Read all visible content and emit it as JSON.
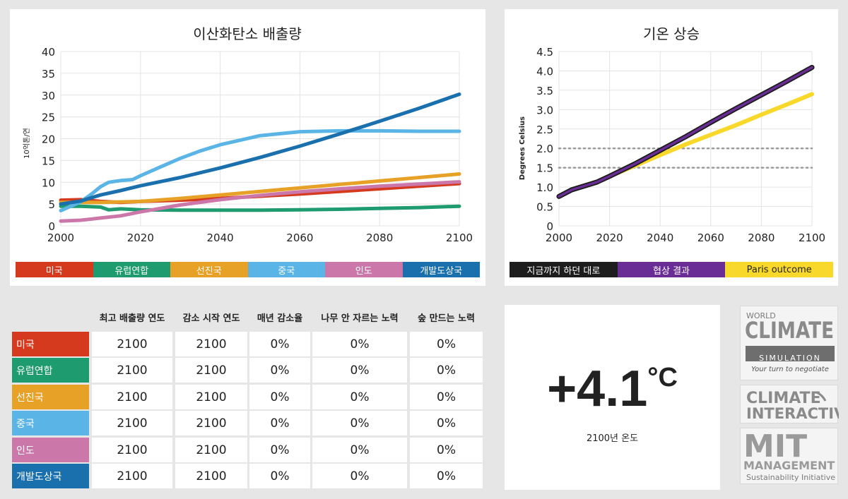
{
  "colors": {
    "us": "#d53a1e",
    "eu": "#1e9b6f",
    "developed": "#e6a126",
    "china": "#5ab4e6",
    "india": "#cc77aa",
    "developing": "#1a6fad",
    "current": "#1d1d1d",
    "negotiated": "#6a2d96",
    "paris": "#f8d92b"
  },
  "emissions": {
    "title": "이산화탄소 배출량",
    "legend": [
      "미국",
      "유럽연합",
      "선진국",
      "중국",
      "인도",
      "개발도상국"
    ]
  },
  "temperature": {
    "title": "기온 상승",
    "legend": [
      "지금까지 하던 대로",
      "협상 결과",
      "Paris outcome"
    ]
  },
  "chart_data": [
    {
      "type": "line",
      "title": "이산화탄소 배출량",
      "xlabel": "",
      "ylabel": "10억톤/연",
      "xlim": [
        2000,
        2100
      ],
      "ylim": [
        0,
        40
      ],
      "xticks": [
        2000,
        2020,
        2040,
        2060,
        2080,
        2100
      ],
      "yticks": [
        0,
        5,
        10,
        15,
        20,
        25,
        30,
        35,
        40
      ],
      "grid": true,
      "series": [
        {
          "name": "미국",
          "color": "#d53a1e",
          "x": [
            2000,
            2005,
            2010,
            2015,
            2020,
            2030,
            2040,
            2050,
            2060,
            2070,
            2080,
            2090,
            2100
          ],
          "values": [
            5.9,
            6.0,
            5.6,
            5.4,
            5.6,
            5.9,
            6.3,
            6.8,
            7.3,
            7.9,
            8.5,
            9.1,
            9.7
          ]
        },
        {
          "name": "유럽연합",
          "color": "#1e9b6f",
          "x": [
            2000,
            2005,
            2010,
            2012,
            2015,
            2020,
            2030,
            2040,
            2050,
            2060,
            2070,
            2080,
            2090,
            2100
          ],
          "values": [
            4.5,
            4.5,
            4.3,
            3.7,
            3.9,
            3.7,
            3.6,
            3.6,
            3.6,
            3.7,
            3.8,
            4.0,
            4.2,
            4.5
          ]
        },
        {
          "name": "선진국",
          "color": "#e6a126",
          "x": [
            2000,
            2010,
            2020,
            2030,
            2040,
            2050,
            2060,
            2070,
            2080,
            2090,
            2100
          ],
          "values": [
            5.4,
            5.4,
            5.6,
            6.3,
            7.1,
            7.9,
            8.7,
            9.5,
            10.3,
            11.1,
            11.9
          ]
        },
        {
          "name": "중국",
          "color": "#5ab4e6",
          "x": [
            2000,
            2005,
            2008,
            2010,
            2012,
            2015,
            2018,
            2020,
            2025,
            2030,
            2035,
            2040,
            2050,
            2060,
            2070,
            2080,
            2090,
            2100
          ],
          "values": [
            3.5,
            5.5,
            7.5,
            9.0,
            10.0,
            10.4,
            10.6,
            11.5,
            13.5,
            15.5,
            17.2,
            18.6,
            20.7,
            21.6,
            21.8,
            21.8,
            21.7,
            21.7
          ]
        },
        {
          "name": "인도",
          "color": "#cc77aa",
          "x": [
            2000,
            2005,
            2010,
            2015,
            2020,
            2030,
            2040,
            2050,
            2060,
            2070,
            2080,
            2090,
            2100
          ],
          "values": [
            1.1,
            1.3,
            1.8,
            2.3,
            3.2,
            4.8,
            6.0,
            7.0,
            7.8,
            8.5,
            9.1,
            9.6,
            10.1
          ]
        },
        {
          "name": "개발도상국",
          "color": "#1a6fad",
          "x": [
            2000,
            2005,
            2010,
            2015,
            2020,
            2030,
            2040,
            2050,
            2060,
            2070,
            2080,
            2090,
            2100
          ],
          "values": [
            5.0,
            5.7,
            7.1,
            8.1,
            9.2,
            11.1,
            13.3,
            15.7,
            18.3,
            21.1,
            24.0,
            27.0,
            30.2
          ]
        }
      ]
    },
    {
      "type": "line",
      "title": "기온 상승",
      "xlabel": "",
      "ylabel": "Degrees Celsius",
      "xlim": [
        2000,
        2100
      ],
      "ylim": [
        0,
        4.5
      ],
      "xticks": [
        2000,
        2020,
        2040,
        2060,
        2080,
        2100
      ],
      "yticks": [
        0,
        0.5,
        1.0,
        1.5,
        2.0,
        2.5,
        3.0,
        3.5,
        4.0,
        4.5
      ],
      "yticklabels": [
        "0",
        "0.5",
        "1.0",
        "1.5",
        "2.0",
        "2.5",
        "3.0",
        "3.5",
        "4.0",
        "4.5"
      ],
      "grid": true,
      "reference_lines": [
        1.5,
        2.0
      ],
      "series": [
        {
          "name": "Paris outcome",
          "color": "#f8d92b",
          "x": [
            2000,
            2005,
            2010,
            2015,
            2020,
            2030,
            2040,
            2050,
            2060,
            2070,
            2080,
            2090,
            2100
          ],
          "values": [
            0.76,
            0.93,
            1.03,
            1.13,
            1.28,
            1.55,
            1.83,
            2.1,
            2.35,
            2.6,
            2.87,
            3.13,
            3.4
          ]
        },
        {
          "name": "지금까지 하던 대로",
          "color": "#1d1d1d",
          "x": [
            2000,
            2005,
            2010,
            2015,
            2020,
            2030,
            2040,
            2050,
            2060,
            2070,
            2080,
            2090,
            2100
          ],
          "values": [
            0.76,
            0.93,
            1.03,
            1.13,
            1.28,
            1.6,
            1.95,
            2.3,
            2.67,
            3.03,
            3.38,
            3.73,
            4.09
          ]
        },
        {
          "name": "협상 결과",
          "color": "#6a2d96",
          "x": [
            2000,
            2005,
            2010,
            2015,
            2020,
            2030,
            2040,
            2050,
            2060,
            2070,
            2080,
            2090,
            2100
          ],
          "values": [
            0.76,
            0.93,
            1.03,
            1.13,
            1.28,
            1.6,
            1.95,
            2.3,
            2.67,
            3.03,
            3.38,
            3.73,
            4.09
          ]
        }
      ]
    }
  ],
  "table": {
    "headers": [
      "최고 배출량 연도",
      "감소 시작 연도",
      "매년 감소율",
      "나무 안 자르는 노력",
      "숲 만드는 노력"
    ],
    "rows": [
      {
        "label": "미국",
        "values": [
          "2100",
          "2100",
          "0%",
          "0%",
          "0%"
        ]
      },
      {
        "label": "유럽연합",
        "values": [
          "2100",
          "2100",
          "0%",
          "0%",
          "0%"
        ]
      },
      {
        "label": "선진국",
        "values": [
          "2100",
          "2100",
          "0%",
          "0%",
          "0%"
        ]
      },
      {
        "label": "중국",
        "values": [
          "2100",
          "2100",
          "0%",
          "0%",
          "0%"
        ]
      },
      {
        "label": "인도",
        "values": [
          "2100",
          "2100",
          "0%",
          "0%",
          "0%"
        ]
      },
      {
        "label": "개발도상국",
        "values": [
          "2100",
          "2100",
          "0%",
          "0%",
          "0%"
        ]
      }
    ]
  },
  "result": {
    "value": "+4.1",
    "unit": "°C",
    "caption": "2100년 온도"
  },
  "logos": {
    "wcs": {
      "top": "WORLD",
      "main": "CLIMATE",
      "sub": "SIMULATION",
      "tagline": "Your turn to negotiate"
    },
    "ci": {
      "line1": "CLIMATE",
      "line2": "INTERACTIVE"
    },
    "mit": {
      "line1": "MIT",
      "line2": "MANAGEMENT",
      "line3": "Sustainability Initiative"
    }
  }
}
